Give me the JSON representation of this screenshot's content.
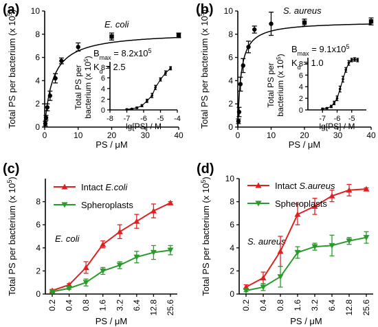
{
  "chart_data": [
    {
      "type": "scatter",
      "panel": "(a)",
      "species": "E. coli",
      "ylabel": "Total PS per bacterium (x 10",
      "ylabel_exp": "5",
      "ylabel_close": ")",
      "xlabel": "PS / μM",
      "xlim": [
        0,
        40
      ],
      "ylim": [
        0,
        10
      ],
      "xticks": [
        0,
        10,
        20,
        30,
        40
      ],
      "yticks": [
        0,
        2,
        4,
        6,
        8,
        10
      ],
      "x": [
        0.2,
        0.4,
        0.8,
        1.6,
        3.2,
        5.0,
        10.0,
        20.0,
        40.0
      ],
      "y": [
        0.3,
        0.8,
        1.7,
        2.7,
        4.2,
        5.7,
        6.9,
        7.8,
        7.9
      ],
      "err": [
        0.2,
        0.2,
        0.3,
        0.4,
        0.4,
        0.25,
        0.35,
        0.3,
        0.2
      ],
      "fit": {
        "Bmax": 8.2,
        "Kd": 2.5
      },
      "inset": {
        "ylabel_1": "Total PS per",
        "ylabel_2": "bacterium (x 10",
        "ylabel_exp": "5",
        "ylabel_close": ")",
        "xlabel": "lg[PS] / M",
        "xlim": [
          -8,
          -4
        ],
        "ylim": [
          0,
          9
        ],
        "xticks": [
          -8,
          -7,
          -6,
          -5,
          -4
        ],
        "yticks": [
          0,
          2,
          4,
          6,
          8
        ],
        "x": [
          -7.0,
          -6.7,
          -6.4,
          -6.1,
          -5.8,
          -5.5,
          -5.3,
          -5.0,
          -4.7,
          -4.4
        ],
        "y": [
          0.1,
          0.2,
          0.4,
          0.8,
          1.7,
          2.7,
          4.2,
          5.7,
          6.9,
          7.8
        ],
        "err": [
          0.1,
          0.1,
          0.15,
          0.2,
          0.3,
          0.4,
          0.4,
          0.3,
          0.4,
          0.3
        ]
      },
      "annotation": {
        "bmax_label": "B",
        "bmax_sub": "max",
        "bmax_value": " = 8.2x10",
        "bmax_exp": "5",
        "kd_label": "K",
        "kd_sub": "d",
        "kd_value": " = 2.5"
      }
    },
    {
      "type": "scatter",
      "panel": "(b)",
      "species": "S. aureus",
      "ylabel": "Total PS per bacterium (x 10",
      "ylabel_exp": "5",
      "ylabel_close": ")",
      "xlabel": "PS / μM",
      "xlim": [
        0,
        40
      ],
      "ylim": [
        0,
        10
      ],
      "xticks": [
        0,
        10,
        20,
        30,
        40
      ],
      "yticks": [
        0,
        2,
        4,
        6,
        8,
        10
      ],
      "x": [
        0.2,
        0.4,
        0.8,
        1.6,
        3.2,
        5.0,
        10.0,
        20.0,
        40.0
      ],
      "y": [
        0.5,
        1.3,
        3.7,
        5.3,
        6.9,
        8.4,
        8.9,
        9.0,
        9.1
      ],
      "err": [
        0.2,
        0.4,
        0.6,
        0.6,
        0.5,
        0.3,
        1.0,
        0.3,
        0.3
      ],
      "fit": {
        "Bmax": 9.1,
        "Kd": 1.0
      },
      "inset": {
        "ylabel_1": "Total PS per",
        "ylabel_2": "bacterium (x 10",
        "ylabel_exp": "5",
        "ylabel_close": ")",
        "xlabel": "lg[PS] / M",
        "xlim": [
          -8,
          -4
        ],
        "ylim": [
          0,
          9
        ],
        "xticks": [
          -7,
          -6,
          -5
        ],
        "yticks": [
          0,
          2,
          4,
          6,
          8
        ],
        "x": [
          -7.0,
          -6.7,
          -6.4,
          -6.2,
          -6.0,
          -5.8,
          -5.6,
          -5.4,
          -5.2,
          -5.0,
          -4.8,
          -4.6
        ],
        "y": [
          0.2,
          0.3,
          0.6,
          1.2,
          2.0,
          3.6,
          5.3,
          6.9,
          8.1,
          8.6,
          8.7,
          8.6
        ],
        "err": [
          0.1,
          0.1,
          0.2,
          0.3,
          0.4,
          0.5,
          0.5,
          0.4,
          0.4,
          0.3,
          0.3,
          0.3
        ]
      },
      "annotation": {
        "bmax_label": "B",
        "bmax_sub": "max",
        "bmax_value": " = 9.1x10",
        "bmax_exp": "5",
        "kd_label": "K",
        "kd_sub": "d",
        "kd_value": " = 1.0"
      }
    },
    {
      "type": "line",
      "panel": "(c)",
      "species": "E. coli",
      "ylabel": "Total PS per bacterium (x 10",
      "ylabel_exp": "5",
      "ylabel_close": ")",
      "xlabel": "PS / μM",
      "ylim": [
        0,
        10
      ],
      "yticks": [
        0,
        2,
        4,
        6,
        8
      ],
      "categories": [
        "0.2",
        "0.4",
        "0.8",
        "1.6",
        "3.2",
        "6.4",
        "12.8",
        "25.6"
      ],
      "series": [
        {
          "name": "Intact E.coli",
          "color": "#e02020",
          "marker": "triangle-up",
          "values": [
            0.3,
            0.8,
            2.3,
            4.3,
            5.4,
            6.3,
            7.2,
            7.9
          ],
          "err": [
            0.1,
            0.1,
            0.5,
            0.3,
            0.6,
            0.6,
            0.6,
            0.1
          ]
        },
        {
          "name": "Spheroplasts",
          "color": "#2a9a2a",
          "marker": "triangle-down",
          "values": [
            0.2,
            0.5,
            1.0,
            2.0,
            2.5,
            3.2,
            3.6,
            3.8
          ],
          "err": [
            0.1,
            0.1,
            0.3,
            0.3,
            0.3,
            0.5,
            0.6,
            0.4
          ]
        }
      ],
      "legend": [
        "Intact ",
        "E.coli",
        "Spheroplasts"
      ]
    },
    {
      "type": "line",
      "panel": "(d)",
      "species": "S. aureus",
      "ylabel": "Total PS per bacterium (x 10",
      "ylabel_exp": "5",
      "ylabel_close": ")",
      "xlabel": "PS / μM",
      "ylim": [
        0,
        10
      ],
      "yticks": [
        0,
        2,
        4,
        6,
        8,
        10
      ],
      "categories": [
        "0.2",
        "0.4",
        "0.8",
        "1.6",
        "3.2",
        "6.4",
        "12.8",
        "25.6"
      ],
      "series": [
        {
          "name": "Intact S.aureus",
          "color": "#e02020",
          "marker": "triangle-up",
          "values": [
            0.6,
            1.4,
            3.7,
            6.9,
            7.6,
            8.5,
            9.0,
            9.1
          ],
          "err": [
            0.2,
            0.5,
            1.3,
            0.9,
            0.7,
            0.5,
            0.5,
            0.1
          ]
        },
        {
          "name": "Spheroplasts",
          "color": "#2a9a2a",
          "marker": "triangle-down",
          "values": [
            0.3,
            0.6,
            1.5,
            3.6,
            4.1,
            4.2,
            4.6,
            4.9
          ],
          "err": [
            0.1,
            0.3,
            0.9,
            0.5,
            0.3,
            0.9,
            0.3,
            0.5
          ]
        }
      ],
      "legend": [
        "Intact ",
        "S.aureus",
        "Spheroplasts"
      ]
    }
  ]
}
